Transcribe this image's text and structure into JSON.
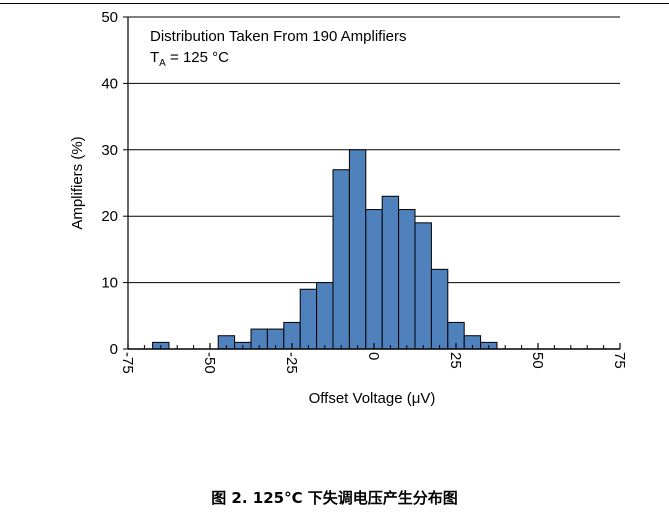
{
  "chart_data": {
    "type": "bar",
    "annotation_line1": "Distribution Taken From 190 Amplifiers",
    "annotation_line2_main": "T",
    "annotation_line2_sub": "A",
    "annotation_line2_rest": " = 125 °C",
    "xlabel": "Offset Voltage (μV)",
    "ylabel": "Amplifiers (%)",
    "xlim": [
      -75,
      75
    ],
    "ylim": [
      0,
      50
    ],
    "bin_width": 5,
    "x_ticks": [
      -75,
      -50,
      -25,
      0,
      25,
      50,
      75
    ],
    "x_tick_labels": [
      "-75",
      "-50",
      "-25",
      "0",
      "25",
      "50",
      "75"
    ],
    "y_ticks": [
      0,
      10,
      20,
      30,
      40,
      50
    ],
    "y_tick_labels": [
      "0",
      "10",
      "20",
      "30",
      "40",
      "50"
    ],
    "grid": "horizontal",
    "bar_color": "#4F81BD",
    "bins": [
      {
        "x": -65,
        "value": 1
      },
      {
        "x": -45,
        "value": 2
      },
      {
        "x": -40,
        "value": 1
      },
      {
        "x": -35,
        "value": 3
      },
      {
        "x": -30,
        "value": 3
      },
      {
        "x": -25,
        "value": 4
      },
      {
        "x": -20,
        "value": 9
      },
      {
        "x": -15,
        "value": 10
      },
      {
        "x": -10,
        "value": 27
      },
      {
        "x": -5,
        "value": 30
      },
      {
        "x": 0,
        "value": 21
      },
      {
        "x": 5,
        "value": 23
      },
      {
        "x": 10,
        "value": 21
      },
      {
        "x": 15,
        "value": 19
      },
      {
        "x": 20,
        "value": 12
      },
      {
        "x": 25,
        "value": 4
      },
      {
        "x": 30,
        "value": 2
      },
      {
        "x": 35,
        "value": 1
      }
    ]
  },
  "caption": "图 2. 125°C 下失调电压产生分布图"
}
